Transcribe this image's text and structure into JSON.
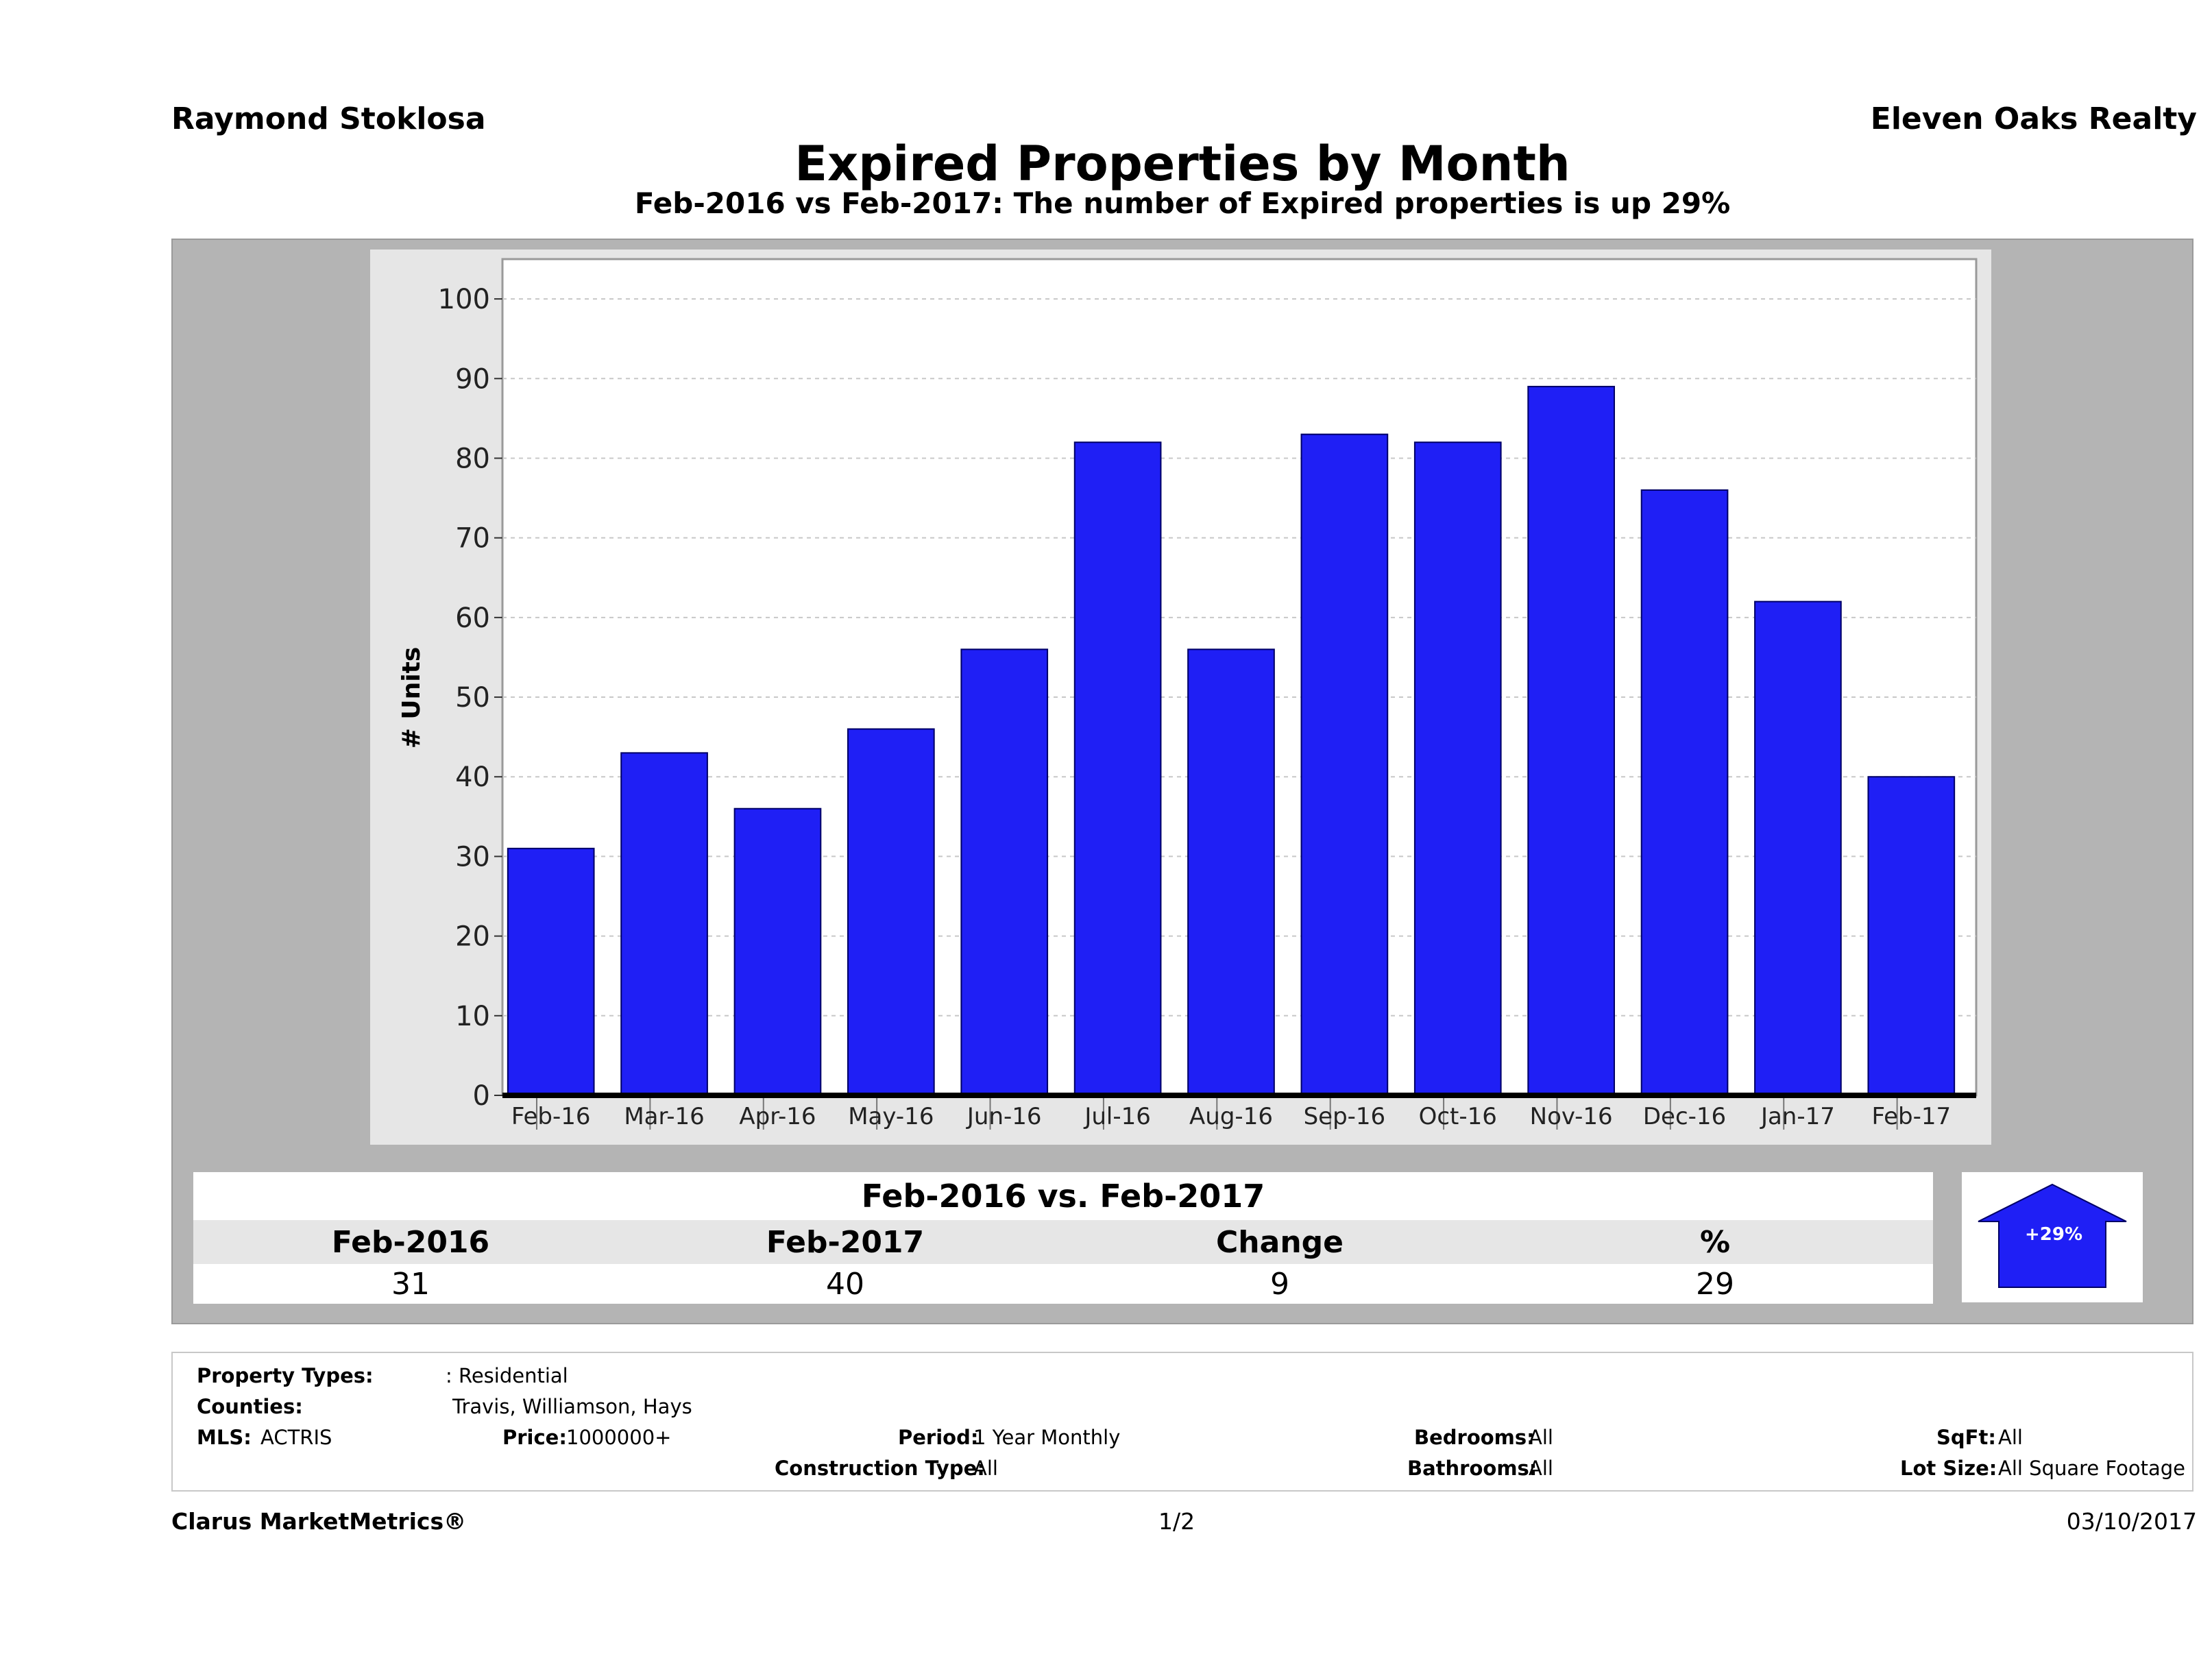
{
  "header": {
    "agent": "Raymond Stoklosa",
    "company": "Eleven Oaks Realty",
    "title": "Expired Properties by Month",
    "subtitle": "Feb-2016 vs Feb-2017: The number of Expired  properties is up 29%"
  },
  "chart_data": {
    "type": "bar",
    "categories": [
      "Feb-16",
      "Mar-16",
      "Apr-16",
      "May-16",
      "Jun-16",
      "Jul-16",
      "Aug-16",
      "Sep-16",
      "Oct-16",
      "Nov-16",
      "Dec-16",
      "Jan-17",
      "Feb-17"
    ],
    "values": [
      31,
      43,
      36,
      46,
      56,
      82,
      56,
      83,
      82,
      89,
      76,
      62,
      40
    ],
    "ylabel": "# Units",
    "ylim": [
      0,
      105
    ],
    "yticks": [
      0,
      10,
      20,
      30,
      40,
      50,
      60,
      70,
      80,
      90,
      100
    ],
    "grid": true,
    "colors": {
      "bar": "#1f1ff5",
      "bar_edge": "#000066",
      "plot_bg": "#ffffff",
      "frame_bg": "#e6e6e6",
      "panel_bg": "#b4b4b4"
    }
  },
  "summary": {
    "title": "Feb-2016 vs. Feb-2017",
    "headers": [
      "Feb-2016",
      "Feb-2017",
      "Change",
      "%"
    ],
    "values": [
      "31",
      "40",
      "9",
      "29"
    ],
    "badge": {
      "label": "+29%",
      "icon": "up-arrow-icon",
      "color": "#1f1ff5"
    }
  },
  "criteria": {
    "property_types_label": "Property Types:",
    "property_types_value": ": Residential",
    "counties_label": "Counties:",
    "counties_value": "Travis, Williamson, Hays",
    "mls_label": "MLS:",
    "mls_value": "ACTRIS",
    "price_label": "Price:",
    "price_value": "1000000+",
    "period_label": "Period:",
    "period_value": "1 Year Monthly",
    "construction_label": "Construction Type:",
    "construction_value": "All",
    "bedrooms_label": "Bedrooms:",
    "bedrooms_value": "All",
    "bathrooms_label": "Bathrooms:",
    "bathrooms_value": "All",
    "sqft_label": "SqFt:",
    "sqft_value": "All",
    "lotsize_label": "Lot Size:",
    "lotsize_value": "All Square Footage"
  },
  "footer": {
    "brand": "Clarus MarketMetrics®",
    "page": "1/2",
    "date": "03/10/2017"
  }
}
